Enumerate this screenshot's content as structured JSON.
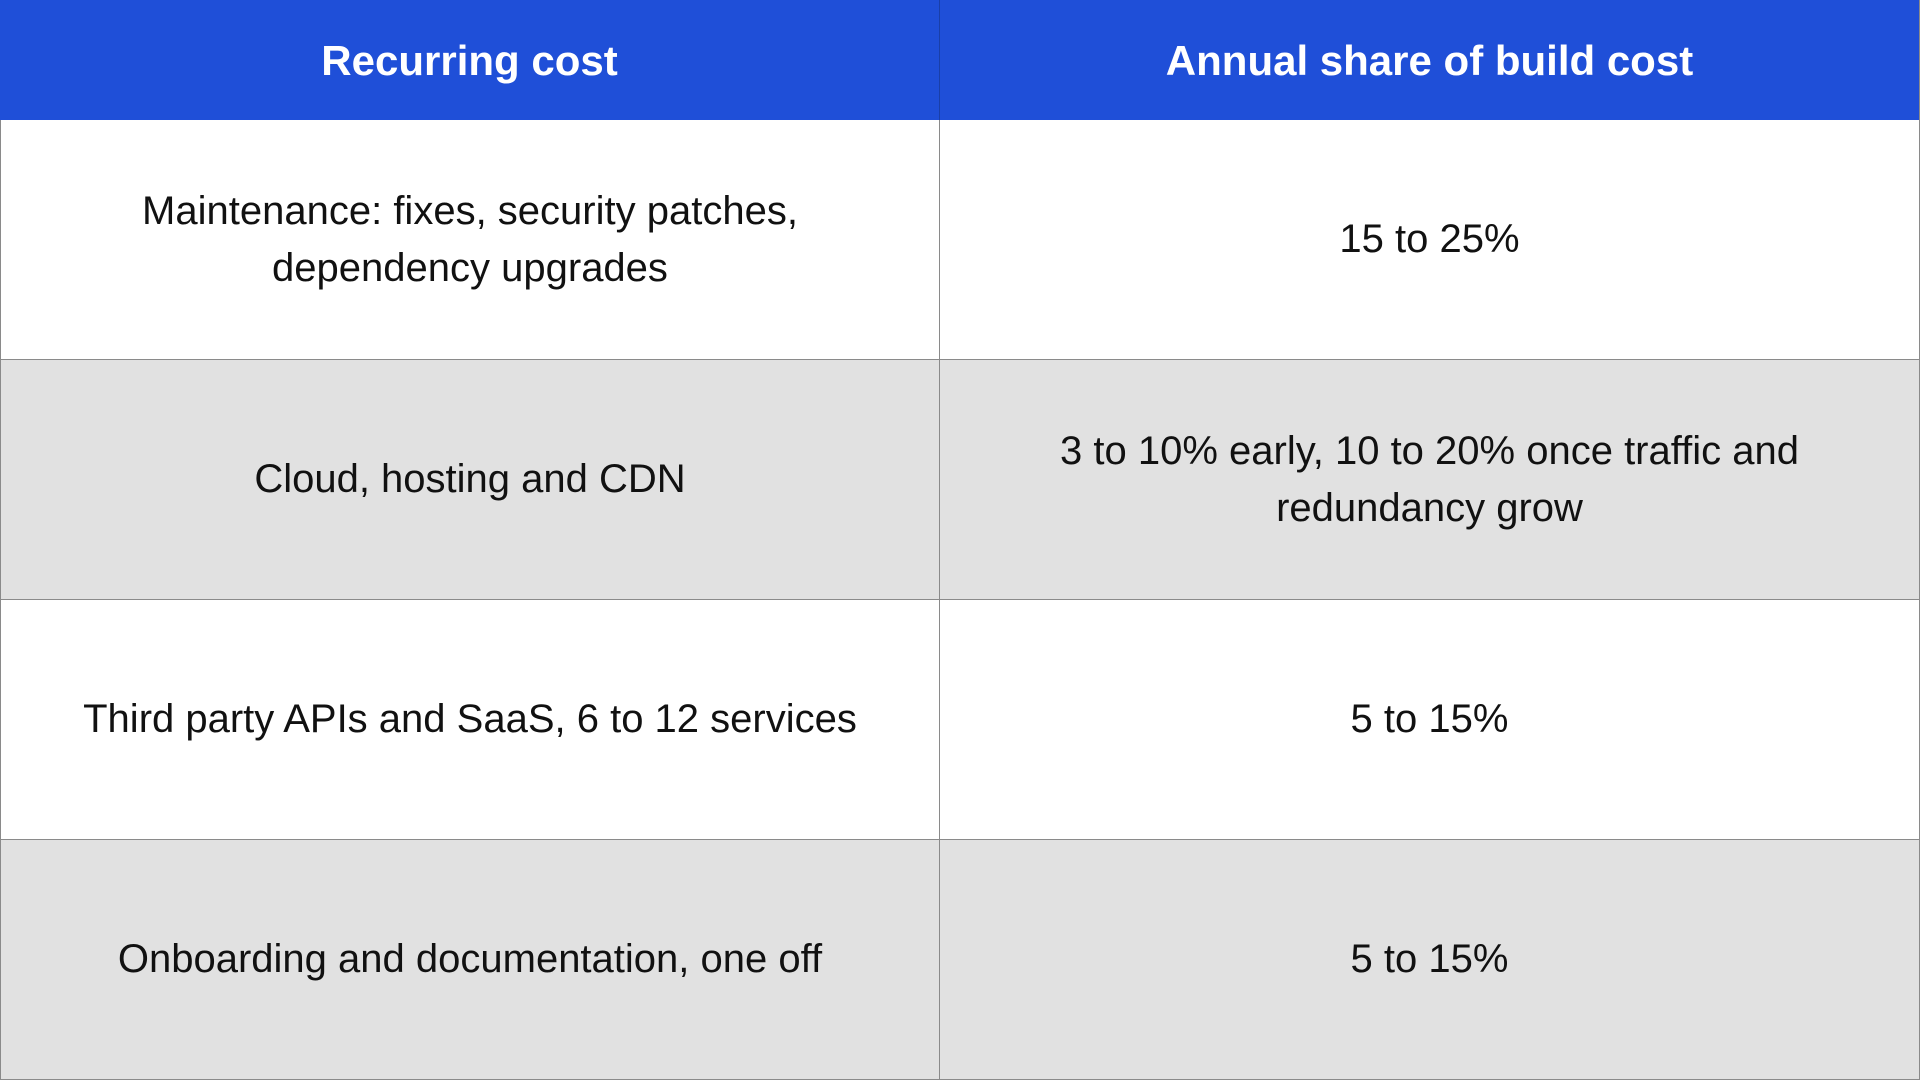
{
  "table": {
    "headers": [
      "Recurring cost",
      "Annual share of build cost"
    ],
    "rows": [
      {
        "cost": "Maintenance: fixes, security patches, dependency upgrades",
        "share": "15 to 25%"
      },
      {
        "cost": "Cloud, hosting and CDN",
        "share": "3 to 10% early, 10 to 20% once traffic and redundancy grow"
      },
      {
        "cost": "Third party APIs and SaaS, 6 to 12 services",
        "share": "5 to 15%"
      },
      {
        "cost": "Onboarding and documentation, one off",
        "share": "5 to 15%"
      }
    ]
  },
  "colors": {
    "header_background": "#1f4fd8",
    "header_text": "#ffffff",
    "row_light": "#ffffff",
    "row_gray": "#e1e1e1",
    "border": "#8a8a8a"
  }
}
